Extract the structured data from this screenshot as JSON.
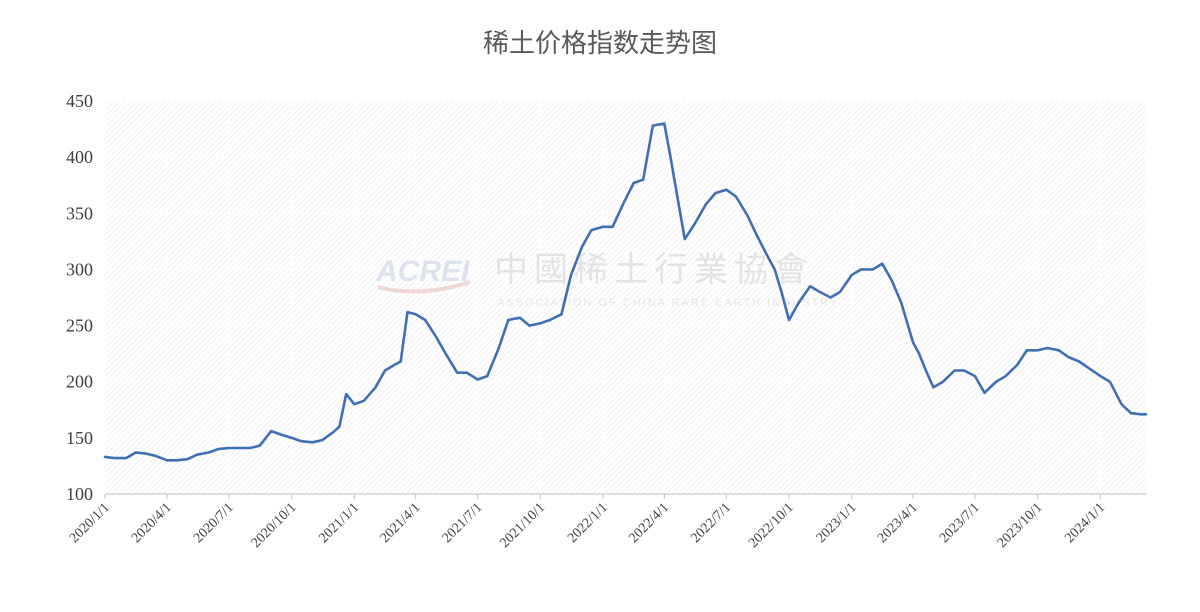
{
  "chart_data": {
    "type": "line",
    "title": "稀土价格指数走势图",
    "xlabel": "",
    "ylabel": "",
    "ylim": [
      100,
      450
    ],
    "yticks": [
      100,
      150,
      200,
      250,
      300,
      350,
      400,
      450
    ],
    "xlim": [
      "2020-01-01",
      "2024-03-08"
    ],
    "xtick_labels": [
      "2020/1/1",
      "2020/4/1",
      "2020/7/1",
      "2020/10/1",
      "2021/1/1",
      "2021/4/1",
      "2021/7/1",
      "2021/10/1",
      "2022/1/1",
      "2022/4/1",
      "2022/7/1",
      "2022/10/1",
      "2023/1/1",
      "2023/4/1",
      "2023/7/1",
      "2023/10/1",
      "2024/1/1"
    ],
    "xtick_dates": [
      "2020-01-01",
      "2020-04-01",
      "2020-07-01",
      "2020-10-01",
      "2021-01-01",
      "2021-04-01",
      "2021-07-01",
      "2021-10-01",
      "2022-01-01",
      "2022-04-01",
      "2022-07-01",
      "2022-10-01",
      "2023-01-01",
      "2023-04-01",
      "2023-07-01",
      "2023-10-01",
      "2024-01-01"
    ],
    "grid": true,
    "legend": "none",
    "line_color": "#3f6fb5",
    "watermark_logo": "ACREI",
    "watermark_name": "中國稀土行業協會",
    "watermark_subtitle": "ASSOCIATION OF CHINA RARE EARTH INDUSTRY",
    "series": [
      {
        "x": [
          "2020-01-01",
          "2020-01-15",
          "2020-02-01",
          "2020-02-15",
          "2020-03-01",
          "2020-03-15",
          "2020-04-01",
          "2020-04-15",
          "2020-05-01",
          "2020-05-15",
          "2020-06-01",
          "2020-06-15",
          "2020-07-01",
          "2020-07-15",
          "2020-08-01",
          "2020-08-15",
          "2020-09-01",
          "2020-09-15",
          "2020-10-01",
          "2020-10-15",
          "2020-11-01",
          "2020-11-15",
          "2020-12-01",
          "2020-12-10",
          "2020-12-20",
          "2021-01-01",
          "2021-01-15",
          "2021-02-01",
          "2021-02-15",
          "2021-03-01",
          "2021-03-10",
          "2021-03-20",
          "2021-04-01",
          "2021-04-15",
          "2021-05-01",
          "2021-05-15",
          "2021-06-01",
          "2021-06-15",
          "2021-07-01",
          "2021-07-15",
          "2021-08-01",
          "2021-08-15",
          "2021-09-01",
          "2021-09-15",
          "2021-10-01",
          "2021-10-15",
          "2021-11-01",
          "2021-11-15",
          "2021-12-01",
          "2021-12-15",
          "2022-01-01",
          "2022-01-15",
          "2022-02-01",
          "2022-02-15",
          "2022-03-01",
          "2022-03-15",
          "2022-04-01",
          "2022-04-10",
          "2022-04-20",
          "2022-05-01",
          "2022-05-15",
          "2022-06-01",
          "2022-06-15",
          "2022-07-01",
          "2022-07-15",
          "2022-08-01",
          "2022-08-15",
          "2022-09-01",
          "2022-09-10",
          "2022-09-20",
          "2022-10-01",
          "2022-10-15",
          "2022-11-01",
          "2022-11-15",
          "2022-12-01",
          "2022-12-15",
          "2023-01-01",
          "2023-01-15",
          "2023-02-01",
          "2023-02-15",
          "2023-03-01",
          "2023-03-15",
          "2023-04-01",
          "2023-04-10",
          "2023-04-20",
          "2023-05-01",
          "2023-05-15",
          "2023-06-01",
          "2023-06-15",
          "2023-07-01",
          "2023-07-15",
          "2023-08-01",
          "2023-08-15",
          "2023-09-01",
          "2023-09-15",
          "2023-10-01",
          "2023-10-15",
          "2023-11-01",
          "2023-11-15",
          "2023-12-01",
          "2023-12-15",
          "2024-01-01",
          "2024-01-15",
          "2024-02-01",
          "2024-02-15",
          "2024-03-01",
          "2024-03-08"
        ],
        "y": [
          133,
          132,
          132,
          137,
          136,
          134,
          130,
          130,
          131,
          135,
          137,
          140,
          141,
          141,
          141,
          143,
          156,
          153,
          150,
          147,
          146,
          148,
          155,
          160,
          189,
          180,
          183,
          195,
          210,
          215,
          218,
          262,
          260,
          255,
          240,
          225,
          208,
          208,
          202,
          205,
          230,
          255,
          257,
          250,
          252,
          255,
          260,
          295,
          320,
          335,
          338,
          338,
          360,
          377,
          380,
          428,
          430,
          400,
          365,
          327,
          340,
          358,
          368,
          371,
          365,
          348,
          330,
          310,
          300,
          280,
          255,
          270,
          285,
          280,
          275,
          280,
          295,
          300,
          300,
          305,
          290,
          270,
          235,
          225,
          210,
          195,
          200,
          210,
          210,
          205,
          190,
          200,
          205,
          215,
          228,
          228,
          230,
          228,
          222,
          218,
          212,
          205,
          200,
          180,
          172,
          171,
          171
        ]
      }
    ]
  }
}
